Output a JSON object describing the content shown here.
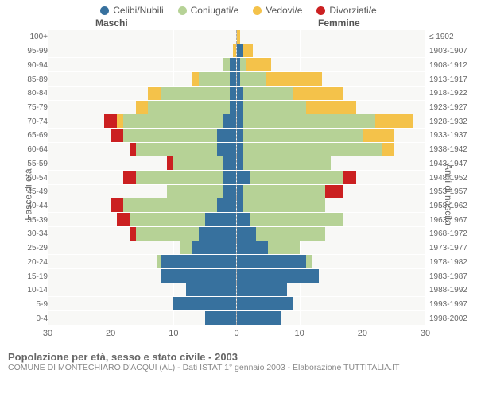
{
  "legend": [
    {
      "label": "Celibi/Nubili",
      "color": "#37719e"
    },
    {
      "label": "Coniugati/e",
      "color": "#b6d296"
    },
    {
      "label": "Vedovi/e",
      "color": "#f4c24a"
    },
    {
      "label": "Divorziati/e",
      "color": "#cb2021"
    }
  ],
  "header_male": "Maschi",
  "header_female": "Femmine",
  "ylabel_left": "Fasce di età",
  "ylabel_right": "Anni di nascita",
  "title": "Popolazione per età, sesso e stato civile - 2003",
  "subtitle": "COMUNE DI MONTECHIARO D'ACQUI (AL) - Dati ISTAT 1° gennaio 2003 - Elaborazione TUTTITALIA.IT",
  "max": 30,
  "xticks": [
    30,
    20,
    10,
    0,
    10,
    20,
    30
  ],
  "colors": {
    "single": "#37719e",
    "married": "#b6d296",
    "widowed": "#f4c24a",
    "divorced": "#cb2021",
    "plot_bg": "#f8f8f6",
    "grid": "#ffffff"
  },
  "rows": [
    {
      "age": "100+",
      "birth": "≤ 1902",
      "m": {
        "s": 0,
        "m": 0,
        "w": 0,
        "d": 0
      },
      "f": {
        "s": 0,
        "m": 0,
        "w": 0.5,
        "d": 0
      }
    },
    {
      "age": "95-99",
      "birth": "1903-1907",
      "m": {
        "s": 0,
        "m": 0,
        "w": 0.5,
        "d": 0
      },
      "f": {
        "s": 1,
        "m": 0,
        "w": 1.5,
        "d": 0
      }
    },
    {
      "age": "90-94",
      "birth": "1908-1912",
      "m": {
        "s": 1,
        "m": 1,
        "w": 0,
        "d": 0
      },
      "f": {
        "s": 0.5,
        "m": 1,
        "w": 4,
        "d": 0
      }
    },
    {
      "age": "85-89",
      "birth": "1913-1917",
      "m": {
        "s": 1,
        "m": 5,
        "w": 1,
        "d": 0
      },
      "f": {
        "s": 0.5,
        "m": 4,
        "w": 9,
        "d": 0
      }
    },
    {
      "age": "80-84",
      "birth": "1918-1922",
      "m": {
        "s": 1,
        "m": 11,
        "w": 2,
        "d": 0
      },
      "f": {
        "s": 1,
        "m": 8,
        "w": 8,
        "d": 0
      }
    },
    {
      "age": "75-79",
      "birth": "1923-1927",
      "m": {
        "s": 1,
        "m": 13,
        "w": 2,
        "d": 0
      },
      "f": {
        "s": 1,
        "m": 10,
        "w": 8,
        "d": 0
      }
    },
    {
      "age": "70-74",
      "birth": "1928-1932",
      "m": {
        "s": 2,
        "m": 16,
        "w": 1,
        "d": 2
      },
      "f": {
        "s": 1,
        "m": 21,
        "w": 6,
        "d": 0
      }
    },
    {
      "age": "65-69",
      "birth": "1933-1937",
      "m": {
        "s": 3,
        "m": 15,
        "w": 0,
        "d": 2
      },
      "f": {
        "s": 1,
        "m": 19,
        "w": 5,
        "d": 0
      }
    },
    {
      "age": "60-64",
      "birth": "1938-1942",
      "m": {
        "s": 3,
        "m": 13,
        "w": 0,
        "d": 1
      },
      "f": {
        "s": 1,
        "m": 22,
        "w": 2,
        "d": 0
      }
    },
    {
      "age": "55-59",
      "birth": "1943-1947",
      "m": {
        "s": 2,
        "m": 8,
        "w": 0,
        "d": 1
      },
      "f": {
        "s": 1,
        "m": 14,
        "w": 0,
        "d": 0
      }
    },
    {
      "age": "50-54",
      "birth": "1948-1952",
      "m": {
        "s": 2,
        "m": 14,
        "w": 0,
        "d": 2
      },
      "f": {
        "s": 2,
        "m": 15,
        "w": 0,
        "d": 2
      }
    },
    {
      "age": "45-49",
      "birth": "1953-1957",
      "m": {
        "s": 2,
        "m": 9,
        "w": 0,
        "d": 0
      },
      "f": {
        "s": 1,
        "m": 13,
        "w": 0,
        "d": 3
      }
    },
    {
      "age": "40-44",
      "birth": "1958-1962",
      "m": {
        "s": 3,
        "m": 15,
        "w": 0,
        "d": 2
      },
      "f": {
        "s": 1,
        "m": 13,
        "w": 0,
        "d": 0
      }
    },
    {
      "age": "35-39",
      "birth": "1963-1967",
      "m": {
        "s": 5,
        "m": 12,
        "w": 0,
        "d": 2
      },
      "f": {
        "s": 2,
        "m": 15,
        "w": 0,
        "d": 0
      }
    },
    {
      "age": "30-34",
      "birth": "1968-1972",
      "m": {
        "s": 6,
        "m": 10,
        "w": 0,
        "d": 1
      },
      "f": {
        "s": 3,
        "m": 11,
        "w": 0,
        "d": 0
      }
    },
    {
      "age": "25-29",
      "birth": "1973-1977",
      "m": {
        "s": 7,
        "m": 2,
        "w": 0,
        "d": 0
      },
      "f": {
        "s": 5,
        "m": 5,
        "w": 0,
        "d": 0
      }
    },
    {
      "age": "20-24",
      "birth": "1978-1982",
      "m": {
        "s": 12,
        "m": 0.5,
        "w": 0,
        "d": 0
      },
      "f": {
        "s": 11,
        "m": 1,
        "w": 0,
        "d": 0
      }
    },
    {
      "age": "15-19",
      "birth": "1983-1987",
      "m": {
        "s": 12,
        "m": 0,
        "w": 0,
        "d": 0
      },
      "f": {
        "s": 13,
        "m": 0,
        "w": 0,
        "d": 0
      }
    },
    {
      "age": "10-14",
      "birth": "1988-1992",
      "m": {
        "s": 8,
        "m": 0,
        "w": 0,
        "d": 0
      },
      "f": {
        "s": 8,
        "m": 0,
        "w": 0,
        "d": 0
      }
    },
    {
      "age": "5-9",
      "birth": "1993-1997",
      "m": {
        "s": 10,
        "m": 0,
        "w": 0,
        "d": 0
      },
      "f": {
        "s": 9,
        "m": 0,
        "w": 0,
        "d": 0
      }
    },
    {
      "age": "0-4",
      "birth": "1998-2002",
      "m": {
        "s": 5,
        "m": 0,
        "w": 0,
        "d": 0
      },
      "f": {
        "s": 7,
        "m": 0,
        "w": 0,
        "d": 0
      }
    }
  ]
}
